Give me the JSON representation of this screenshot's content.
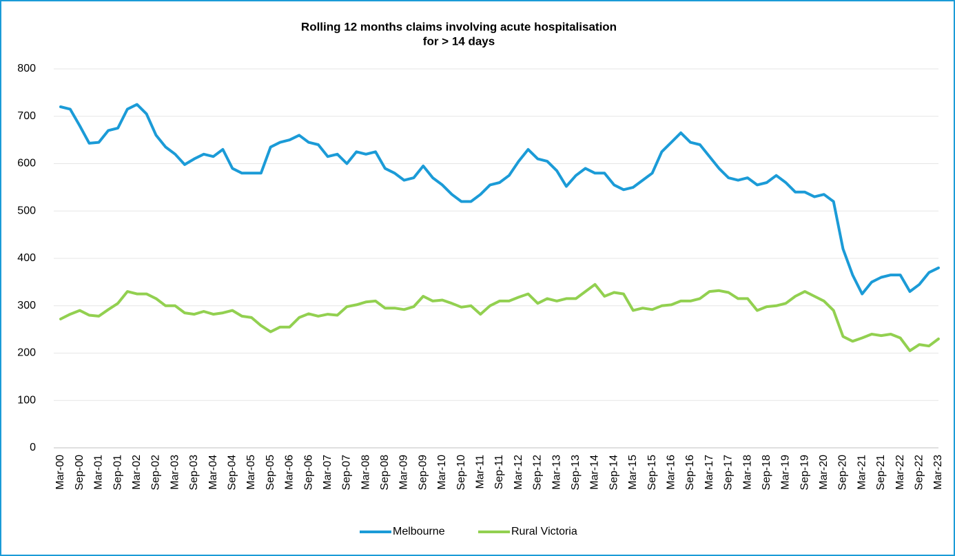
{
  "chart_data": {
    "type": "line",
    "title": [
      "Rolling 12 months claims involving acute hospitalisation",
      "for > 14 days"
    ],
    "categories": [
      "Mar-00",
      null,
      "Sep-00",
      null,
      "Mar-01",
      null,
      "Sep-01",
      null,
      "Mar-02",
      null,
      "Sep-02",
      null,
      "Mar-03",
      null,
      "Sep-03",
      null,
      "Mar-04",
      null,
      "Sep-04",
      null,
      "Mar-05",
      null,
      "Sep-05",
      null,
      "Mar-06",
      null,
      "Sep-06",
      null,
      "Mar-07",
      null,
      "Sep-07",
      null,
      "Mar-08",
      null,
      "Sep-08",
      null,
      "Mar-09",
      null,
      "Sep-09",
      null,
      "Mar-10",
      null,
      "Sep-10",
      null,
      "Mar-11",
      null,
      "Sep-11",
      null,
      "Mar-12",
      null,
      "Sep-12",
      null,
      "Mar-13",
      null,
      "Sep-13",
      null,
      "Mar-14",
      null,
      "Sep-14",
      null,
      "Mar-15",
      null,
      "Sep-15",
      null,
      "Mar-16",
      null,
      "Sep-16",
      null,
      "Mar-17",
      null,
      "Sep-17",
      null,
      "Mar-18",
      null,
      "Sep-18",
      null,
      "Mar-19",
      null,
      "Sep-19",
      null,
      "Mar-20",
      null,
      "Sep-20",
      null,
      "Mar-21",
      null,
      "Sep-21",
      null,
      "Mar-22",
      null,
      "Sep-22",
      null,
      "Mar-23"
    ],
    "series": [
      {
        "name": "Melbourne",
        "color": "#1b9bd7",
        "values": [
          720,
          715,
          680,
          643,
          645,
          670,
          675,
          715,
          725,
          705,
          660,
          635,
          620,
          598,
          610,
          620,
          615,
          630,
          590,
          580,
          580,
          580,
          635,
          645,
          650,
          660,
          645,
          640,
          615,
          620,
          600,
          625,
          620,
          625,
          590,
          580,
          565,
          570,
          595,
          570,
          555,
          535,
          520,
          520,
          535,
          555,
          560,
          575,
          605,
          630,
          610,
          605,
          585,
          552,
          575,
          590,
          580,
          580,
          555,
          545,
          550,
          565,
          580,
          625,
          645,
          665,
          645,
          640,
          615,
          590,
          570,
          565,
          570,
          555,
          560,
          575,
          560,
          540,
          540,
          530,
          535,
          520,
          420,
          365,
          325,
          350,
          360,
          365,
          365,
          330,
          345,
          370,
          380
        ]
      },
      {
        "name": "Rural Victoria",
        "color": "#92d050",
        "values": [
          272,
          282,
          290,
          280,
          278,
          292,
          305,
          330,
          325,
          325,
          315,
          300,
          300,
          285,
          282,
          288,
          282,
          285,
          290,
          278,
          275,
          258,
          245,
          255,
          255,
          275,
          283,
          278,
          282,
          280,
          298,
          302,
          308,
          310,
          295,
          295,
          292,
          298,
          320,
          310,
          312,
          305,
          297,
          300,
          282,
          300,
          310,
          310,
          318,
          325,
          305,
          315,
          310,
          315,
          315,
          330,
          345,
          320,
          328,
          325,
          290,
          295,
          292,
          300,
          302,
          310,
          310,
          315,
          330,
          332,
          328,
          315,
          315,
          290,
          298,
          300,
          305,
          320,
          330,
          320,
          310,
          290,
          235,
          225,
          232,
          240,
          237,
          240,
          232,
          205,
          218,
          215,
          230
        ]
      }
    ],
    "ylim": [
      0,
      800
    ],
    "yticks": [
      0,
      100,
      200,
      300,
      400,
      500,
      600,
      700,
      800
    ],
    "grid": true,
    "legend": "bottom"
  }
}
